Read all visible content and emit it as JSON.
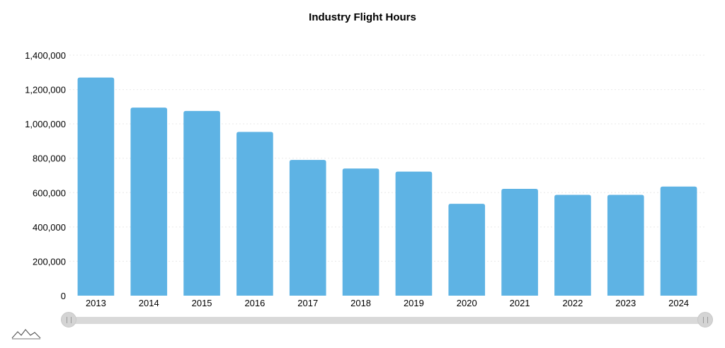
{
  "chart_data": {
    "type": "bar",
    "title": "Industry Flight Hours",
    "xlabel": "",
    "ylabel": "",
    "categories": [
      "2013",
      "2014",
      "2015",
      "2016",
      "2017",
      "2018",
      "2019",
      "2020",
      "2021",
      "2022",
      "2023",
      "2024"
    ],
    "values": [
      1270000,
      1095000,
      1075000,
      953000,
      790000,
      740000,
      722000,
      535000,
      622000,
      587000,
      587000,
      635000
    ],
    "ylim": [
      0,
      1400000
    ],
    "yticks": [
      0,
      200000,
      400000,
      600000,
      800000,
      1000000,
      1200000,
      1400000
    ],
    "ytick_labels": [
      "0",
      "200,000",
      "400,000",
      "600,000",
      "800,000",
      "1,000,000",
      "1,200,000",
      "1,400,000"
    ],
    "grid": true,
    "bar_color": "#5eb3e4"
  },
  "scrollbar": {
    "track_color": "#d9d9d9"
  },
  "logo_icon": "amcharts-logo-icon"
}
